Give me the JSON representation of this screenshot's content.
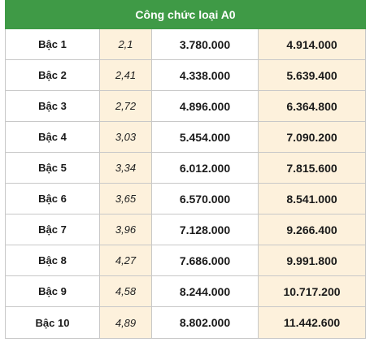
{
  "table": {
    "title": "Công chức loại A0",
    "accent_color": "#3f9a46",
    "shade_color": "#fdf1dc",
    "rows": [
      {
        "level": "Bậc 1",
        "coefficient": "2,1",
        "base": "3.780.000",
        "total": "4.914.000"
      },
      {
        "level": "Bậc 2",
        "coefficient": "2,41",
        "base": "4.338.000",
        "total": "5.639.400"
      },
      {
        "level": "Bậc 3",
        "coefficient": "2,72",
        "base": "4.896.000",
        "total": "6.364.800"
      },
      {
        "level": "Bậc 4",
        "coefficient": "3,03",
        "base": "5.454.000",
        "total": "7.090.200"
      },
      {
        "level": "Bậc 5",
        "coefficient": "3,34",
        "base": "6.012.000",
        "total": "7.815.600"
      },
      {
        "level": "Bậc 6",
        "coefficient": "3,65",
        "base": "6.570.000",
        "total": "8.541.000"
      },
      {
        "level": "Bậc 7",
        "coefficient": "3,96",
        "base": "7.128.000",
        "total": "9.266.400"
      },
      {
        "level": "Bậc 8",
        "coefficient": "4,27",
        "base": "7.686.000",
        "total": "9.991.800"
      },
      {
        "level": "Bậc 9",
        "coefficient": "4,58",
        "base": "8.244.000",
        "total": "10.717.200"
      },
      {
        "level": "Bậc 10",
        "coefficient": "4,89",
        "base": "8.802.000",
        "total": "11.442.600"
      }
    ]
  }
}
